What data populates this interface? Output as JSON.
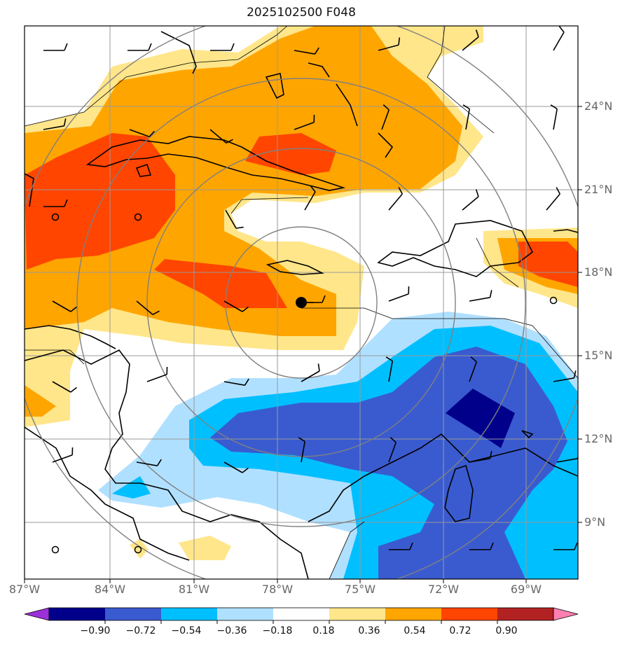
{
  "title": "2025102500 F048",
  "lat_labels": [
    "24°N",
    "21°N",
    "18°N",
    "15°N",
    "12°N",
    "9°N"
  ],
  "lon_labels": [
    "87°W",
    "84°W",
    "81°W",
    "78°W",
    "75°W",
    "72°W",
    "69°W"
  ],
  "colorbar": {
    "tick_labels": [
      "−0.90",
      "−0.72",
      "−0.54",
      "−0.36",
      "−0.18",
      "0.18",
      "0.36",
      "0.54",
      "0.72",
      "0.90"
    ],
    "colors": [
      "#9b30d9",
      "#00008b",
      "#3a5bcf",
      "#00bfff",
      "#b0e0ff",
      "#ffffff",
      "#ffe68a",
      "#ffa500",
      "#ff4500",
      "#b22222",
      "#ff80b0"
    ]
  },
  "colors": {
    "land_outline": "#000000",
    "grid": "#999999",
    "range_rings": "#808080",
    "storm_center": "#000000"
  },
  "storm_center_icon": "filled-circle-marker",
  "wind_barb_icon": "wind-barb"
}
